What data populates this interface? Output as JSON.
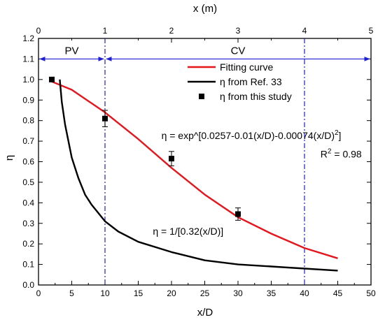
{
  "chart_data": {
    "type": "line",
    "xlabel": "x/D",
    "ylabel": "η",
    "top_xlabel": "x (m)",
    "xlim": [
      0,
      50
    ],
    "ylim": [
      0,
      1.2
    ],
    "top_xlim": [
      0,
      5
    ],
    "x_ticks": [
      "0",
      "5",
      "10",
      "15",
      "20",
      "25",
      "30",
      "35",
      "40",
      "45",
      "50"
    ],
    "y_ticks": [
      "0.0",
      "0.1",
      "0.2",
      "0.3",
      "0.4",
      "0.5",
      "0.6",
      "0.7",
      "0.8",
      "0.9",
      "1.0",
      "1.1",
      "1.2"
    ],
    "top_x_ticks": [
      "0",
      "1",
      "2",
      "3",
      "4",
      "5"
    ],
    "grid": false,
    "legend_position": "top-right",
    "series": [
      {
        "name": "Fitting curve",
        "kind": "line",
        "color": "#e8141b",
        "x": [
          2,
          5,
          10,
          15,
          20,
          25,
          30,
          35,
          40,
          45
        ],
        "y": [
          0.99,
          0.95,
          0.84,
          0.71,
          0.57,
          0.44,
          0.33,
          0.25,
          0.18,
          0.13
        ]
      },
      {
        "name": "η from Ref. 33",
        "kind": "line",
        "color": "#000000",
        "x": [
          3.2,
          3.5,
          4,
          5,
          6,
          7,
          8,
          10,
          12,
          15,
          20,
          25,
          30,
          35,
          40,
          45
        ],
        "y": [
          1.0,
          0.89,
          0.78,
          0.62,
          0.52,
          0.44,
          0.39,
          0.31,
          0.26,
          0.21,
          0.16,
          0.12,
          0.1,
          0.09,
          0.08,
          0.07
        ]
      },
      {
        "name": "η from this study",
        "kind": "scatter",
        "color": "#000000",
        "x": [
          2,
          10,
          20,
          30
        ],
        "y": [
          1.0,
          0.81,
          0.615,
          0.345
        ],
        "error": [
          0,
          0.04,
          0.035,
          0.03
        ]
      }
    ],
    "vertical_lines": [
      {
        "x": 10,
        "style": "dash-dot",
        "color": "#1f1fd6"
      },
      {
        "x": 40,
        "style": "dash-dot",
        "color": "#1f1fd6"
      }
    ],
    "region_arrows": [
      {
        "label": "PV",
        "from": 0,
        "to": 10,
        "y": 1.1,
        "color": "#1f1fd6"
      },
      {
        "label": "CV",
        "from": 10,
        "to": 50,
        "y": 1.1,
        "color": "#1f1fd6"
      }
    ],
    "annotations": [
      {
        "text": "η = exp^[0.0257-0.01(x/D)-0.00074(x/D)",
        "sup": "2",
        "tail": "]",
        "x": 32,
        "y": 0.71
      },
      {
        "text": "R",
        "sup": "2",
        "tail": " = 0.98",
        "x": 45.5,
        "y": 0.62
      },
      {
        "text": "η = 1/[0.32(x/D)]",
        "x": 22.5,
        "y": 0.245
      }
    ]
  }
}
